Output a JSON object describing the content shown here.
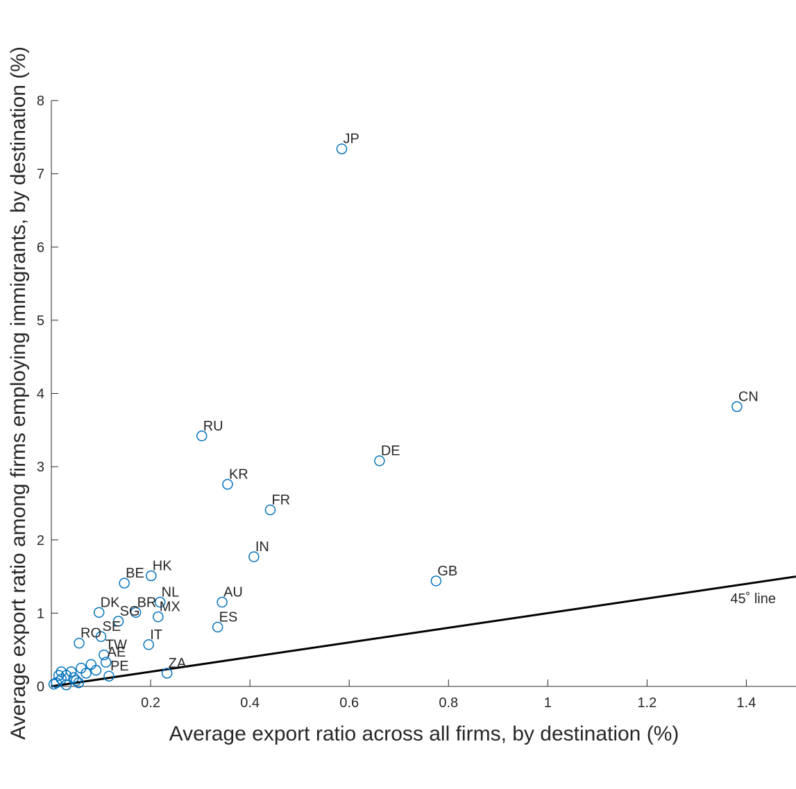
{
  "chart_data": {
    "type": "scatter",
    "x_label": "Average export ratio across all firms, by destination (%)",
    "y_label": "Average export ratio among firms employing immigrants, by destination (%)",
    "xlim": [
      0,
      1.5
    ],
    "ylim": [
      0,
      8
    ],
    "xticks": [
      0.2,
      0.4,
      0.6,
      0.8,
      1,
      1.2,
      1.4
    ],
    "yticks": [
      0,
      1,
      2,
      3,
      4,
      5,
      6,
      7,
      8
    ],
    "color": "#0072bd",
    "reference_line": {
      "slope": 1,
      "label": "45˚ line",
      "color": "#000000"
    },
    "series": [
      {
        "labels": [
          "JP",
          "CN",
          "RU",
          "DE",
          "KR",
          "FR",
          "IN",
          "GB",
          "HK",
          "BE",
          "NL",
          "AU",
          "BR",
          "MX",
          "DK",
          "SG",
          "ES",
          "SE",
          "IT",
          "RO",
          "TW",
          "AE",
          "PE",
          "ZA",
          null,
          null,
          null,
          null,
          null,
          null,
          null,
          null,
          null,
          null,
          null,
          null,
          null,
          null,
          null
        ],
        "x": [
          0.585,
          1.381,
          0.303,
          0.661,
          0.355,
          0.441,
          0.408,
          0.775,
          0.201,
          0.147,
          0.219,
          0.344,
          0.17,
          0.215,
          0.096,
          0.135,
          0.335,
          0.1,
          0.196,
          0.056,
          0.106,
          0.11,
          0.116,
          0.233,
          0.01,
          0.02,
          0.03,
          0.04,
          0.05,
          0.06,
          0.07,
          0.08,
          0.09,
          0.03,
          0.045,
          0.055,
          0.02,
          0.015,
          0.005
        ],
        "y": [
          7.34,
          3.82,
          3.42,
          3.08,
          2.76,
          2.41,
          1.77,
          1.44,
          1.51,
          1.41,
          1.15,
          1.15,
          1.01,
          0.95,
          1.01,
          0.89,
          0.81,
          0.68,
          0.57,
          0.59,
          0.43,
          0.33,
          0.14,
          0.18,
          0.05,
          0.1,
          0.15,
          0.2,
          0.08,
          0.25,
          0.18,
          0.3,
          0.22,
          0.02,
          0.12,
          0.05,
          0.2,
          0.15,
          0.03
        ]
      }
    ]
  }
}
